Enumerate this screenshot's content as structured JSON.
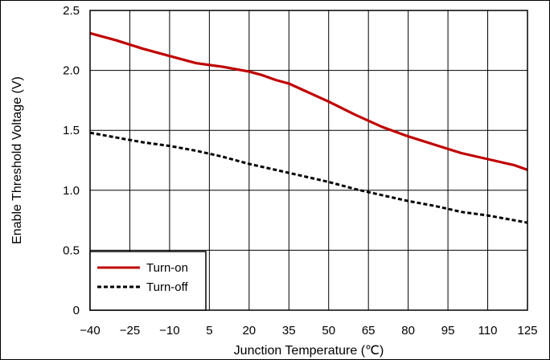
{
  "chart_data": {
    "type": "line",
    "xlabel": "Junction Temperature (℃)",
    "ylabel": "Enable Threshold Voltage (V)",
    "xlim": [
      -40,
      125
    ],
    "ylim": [
      0,
      2.5
    ],
    "x_ticks": [
      -40,
      -25,
      -10,
      5,
      20,
      35,
      50,
      65,
      80,
      95,
      110,
      125
    ],
    "x_tick_labels": [
      "−40",
      "−25",
      "−10",
      "5",
      "20",
      "35",
      "50",
      "65",
      "80",
      "95",
      "110",
      "125"
    ],
    "y_ticks": [
      0,
      0.5,
      1.0,
      1.5,
      2.0,
      2.5
    ],
    "y_tick_labels": [
      "0",
      "0.5",
      "1.0",
      "1.5",
      "2.0",
      "2.5"
    ],
    "grid": true,
    "legend_position": "bottom-left",
    "series": [
      {
        "name": "Turn-on",
        "color": "#c00000",
        "style": "solid",
        "x": [
          -40,
          -30,
          -20,
          -10,
          0,
          10,
          20,
          25,
          30,
          35,
          40,
          50,
          60,
          70,
          75,
          80,
          90,
          100,
          110,
          120,
          125
        ],
        "y": [
          2.31,
          2.25,
          2.18,
          2.12,
          2.06,
          2.03,
          1.99,
          1.96,
          1.92,
          1.89,
          1.84,
          1.74,
          1.63,
          1.53,
          1.49,
          1.45,
          1.38,
          1.31,
          1.26,
          1.21,
          1.17
        ]
      },
      {
        "name": "Turn-off",
        "color": "#000000",
        "style": "dashed",
        "x": [
          -40,
          -30,
          -20,
          -10,
          0,
          10,
          20,
          30,
          40,
          50,
          60,
          70,
          80,
          90,
          100,
          110,
          120,
          125
        ],
        "y": [
          1.48,
          1.44,
          1.4,
          1.37,
          1.33,
          1.28,
          1.22,
          1.17,
          1.12,
          1.07,
          1.01,
          0.96,
          0.91,
          0.87,
          0.82,
          0.79,
          0.75,
          0.73
        ]
      }
    ]
  }
}
